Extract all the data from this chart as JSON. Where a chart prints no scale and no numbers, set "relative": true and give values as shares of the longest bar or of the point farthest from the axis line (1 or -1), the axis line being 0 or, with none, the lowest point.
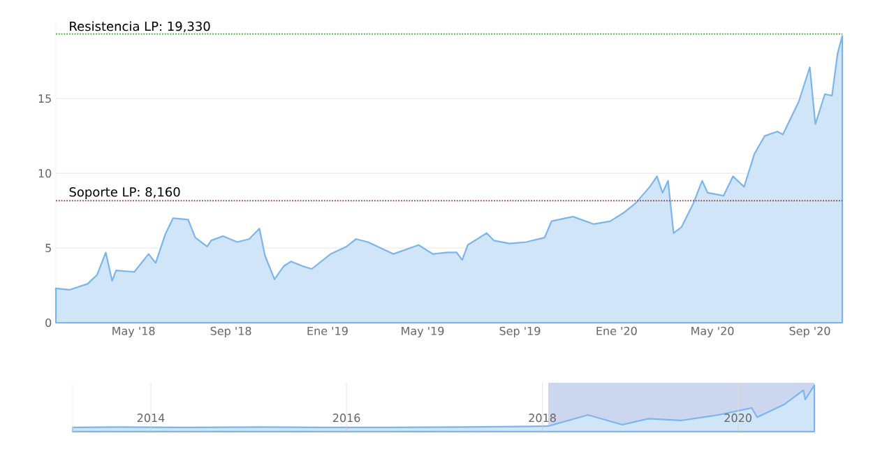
{
  "chart_data": [
    {
      "type": "area",
      "color": "#7cb5ec",
      "grid": "y",
      "xlim": [
        "2018-01-23",
        "2020-10-12"
      ],
      "ylim": [
        0,
        20.2
      ],
      "yticks": [
        0,
        5,
        10,
        15
      ],
      "xticks": [
        {
          "value": "2018-05-01",
          "label": "May '18"
        },
        {
          "value": "2018-09-01",
          "label": "Sep '18"
        },
        {
          "value": "2019-01-01",
          "label": "Ene '19"
        },
        {
          "value": "2019-05-01",
          "label": "May '19"
        },
        {
          "value": "2019-09-01",
          "label": "Sep '19"
        },
        {
          "value": "2020-01-01",
          "label": "Ene '20"
        },
        {
          "value": "2020-05-01",
          "label": "May '20"
        },
        {
          "value": "2020-09-01",
          "label": "Sep '20"
        }
      ],
      "ref_lines": [
        {
          "axis": "y",
          "value": 19.33,
          "label": "Resistencia LP: 19,330",
          "color": "#3a9a3a",
          "line_style": "dotted"
        },
        {
          "axis": "y",
          "value": 8.16,
          "label": "Soporte LP: 8,160",
          "color": "#a03030",
          "line_style": "dotted"
        }
      ],
      "x": [
        "2018-01-23",
        "2018-02-09",
        "2018-03-04",
        "2018-03-16",
        "2018-03-27",
        "2018-04-04",
        "2018-04-09",
        "2018-05-02",
        "2018-05-20",
        "2018-05-29",
        "2018-06-10",
        "2018-06-20",
        "2018-07-09",
        "2018-07-18",
        "2018-08-02",
        "2018-08-07",
        "2018-08-22",
        "2018-09-09",
        "2018-09-24",
        "2018-10-07",
        "2018-10-14",
        "2018-10-26",
        "2018-11-07",
        "2018-11-16",
        "2018-11-30",
        "2018-12-12",
        "2019-01-05",
        "2019-01-25",
        "2019-02-06",
        "2019-02-21",
        "2019-03-25",
        "2019-04-26",
        "2019-05-14",
        "2019-06-01",
        "2019-06-13",
        "2019-06-20",
        "2019-06-27",
        "2019-07-21",
        "2019-07-30",
        "2019-08-19",
        "2019-09-09",
        "2019-10-02",
        "2019-10-11",
        "2019-10-20",
        "2019-11-07",
        "2019-12-03",
        "2019-12-24",
        "2020-01-11",
        "2020-01-25",
        "2020-02-12",
        "2020-02-21",
        "2020-02-28",
        "2020-03-06",
        "2020-03-13",
        "2020-03-23",
        "2020-04-07",
        "2020-04-18",
        "2020-04-25",
        "2020-05-15",
        "2020-05-27",
        "2020-06-10",
        "2020-06-23",
        "2020-07-06",
        "2020-07-22",
        "2020-07-29",
        "2020-08-18",
        "2020-09-01",
        "2020-09-08",
        "2020-09-20",
        "2020-09-29",
        "2020-10-06",
        "2020-10-12"
      ],
      "values": [
        2.3,
        2.2,
        2.6,
        3.2,
        4.7,
        2.8,
        3.5,
        3.4,
        4.6,
        4.0,
        5.9,
        7.0,
        6.9,
        5.7,
        5.1,
        5.5,
        5.8,
        5.4,
        5.6,
        6.3,
        4.5,
        2.9,
        3.8,
        4.1,
        3.8,
        3.6,
        4.6,
        5.1,
        5.6,
        5.4,
        4.6,
        5.2,
        4.6,
        4.7,
        4.7,
        4.2,
        5.2,
        6.0,
        5.5,
        5.3,
        5.4,
        5.7,
        6.8,
        6.9,
        7.1,
        6.6,
        6.8,
        7.4,
        8.0,
        9.1,
        9.8,
        8.7,
        9.5,
        6.0,
        6.4,
        8.0,
        9.5,
        8.7,
        8.5,
        9.8,
        9.1,
        11.3,
        12.5,
        12.8,
        12.6,
        14.8,
        17.1,
        13.3,
        15.3,
        15.2,
        18.0,
        19.2
      ]
    },
    {
      "type": "area",
      "relative": true,
      "color": "#7cb5ec",
      "grid": "x",
      "tick_labels": "x",
      "xlim": [
        "2013-03-15",
        "2020-10-12"
      ],
      "xticks": [
        {
          "value": "2014",
          "label": "2014"
        },
        {
          "value": "2016",
          "label": "2016"
        },
        {
          "value": "2018",
          "label": "2018"
        },
        {
          "value": "2020",
          "label": "2020"
        }
      ],
      "bands": [
        {
          "axis": "x",
          "from": "2018-01-23",
          "to": "2020-10-12",
          "color": "#ccd6ee"
        }
      ],
      "x": [
        "2013-03-15",
        "2013-09-01",
        "2014-06-01",
        "2015-03-01",
        "2015-10-01",
        "2016-06-01",
        "2017-03-01",
        "2017-10-01",
        "2018-01-23",
        "2018-06-20",
        "2018-10-26",
        "2019-02-01",
        "2019-06-01",
        "2019-10-20",
        "2020-02-21",
        "2020-03-13",
        "2020-06-23",
        "2020-09-01",
        "2020-09-08",
        "2020-10-12"
      ],
      "values": [
        0.09,
        0.1,
        0.09,
        0.1,
        0.09,
        0.09,
        0.1,
        0.11,
        0.12,
        0.36,
        0.15,
        0.28,
        0.24,
        0.36,
        0.51,
        0.31,
        0.59,
        0.89,
        0.69,
        1
      ]
    }
  ]
}
